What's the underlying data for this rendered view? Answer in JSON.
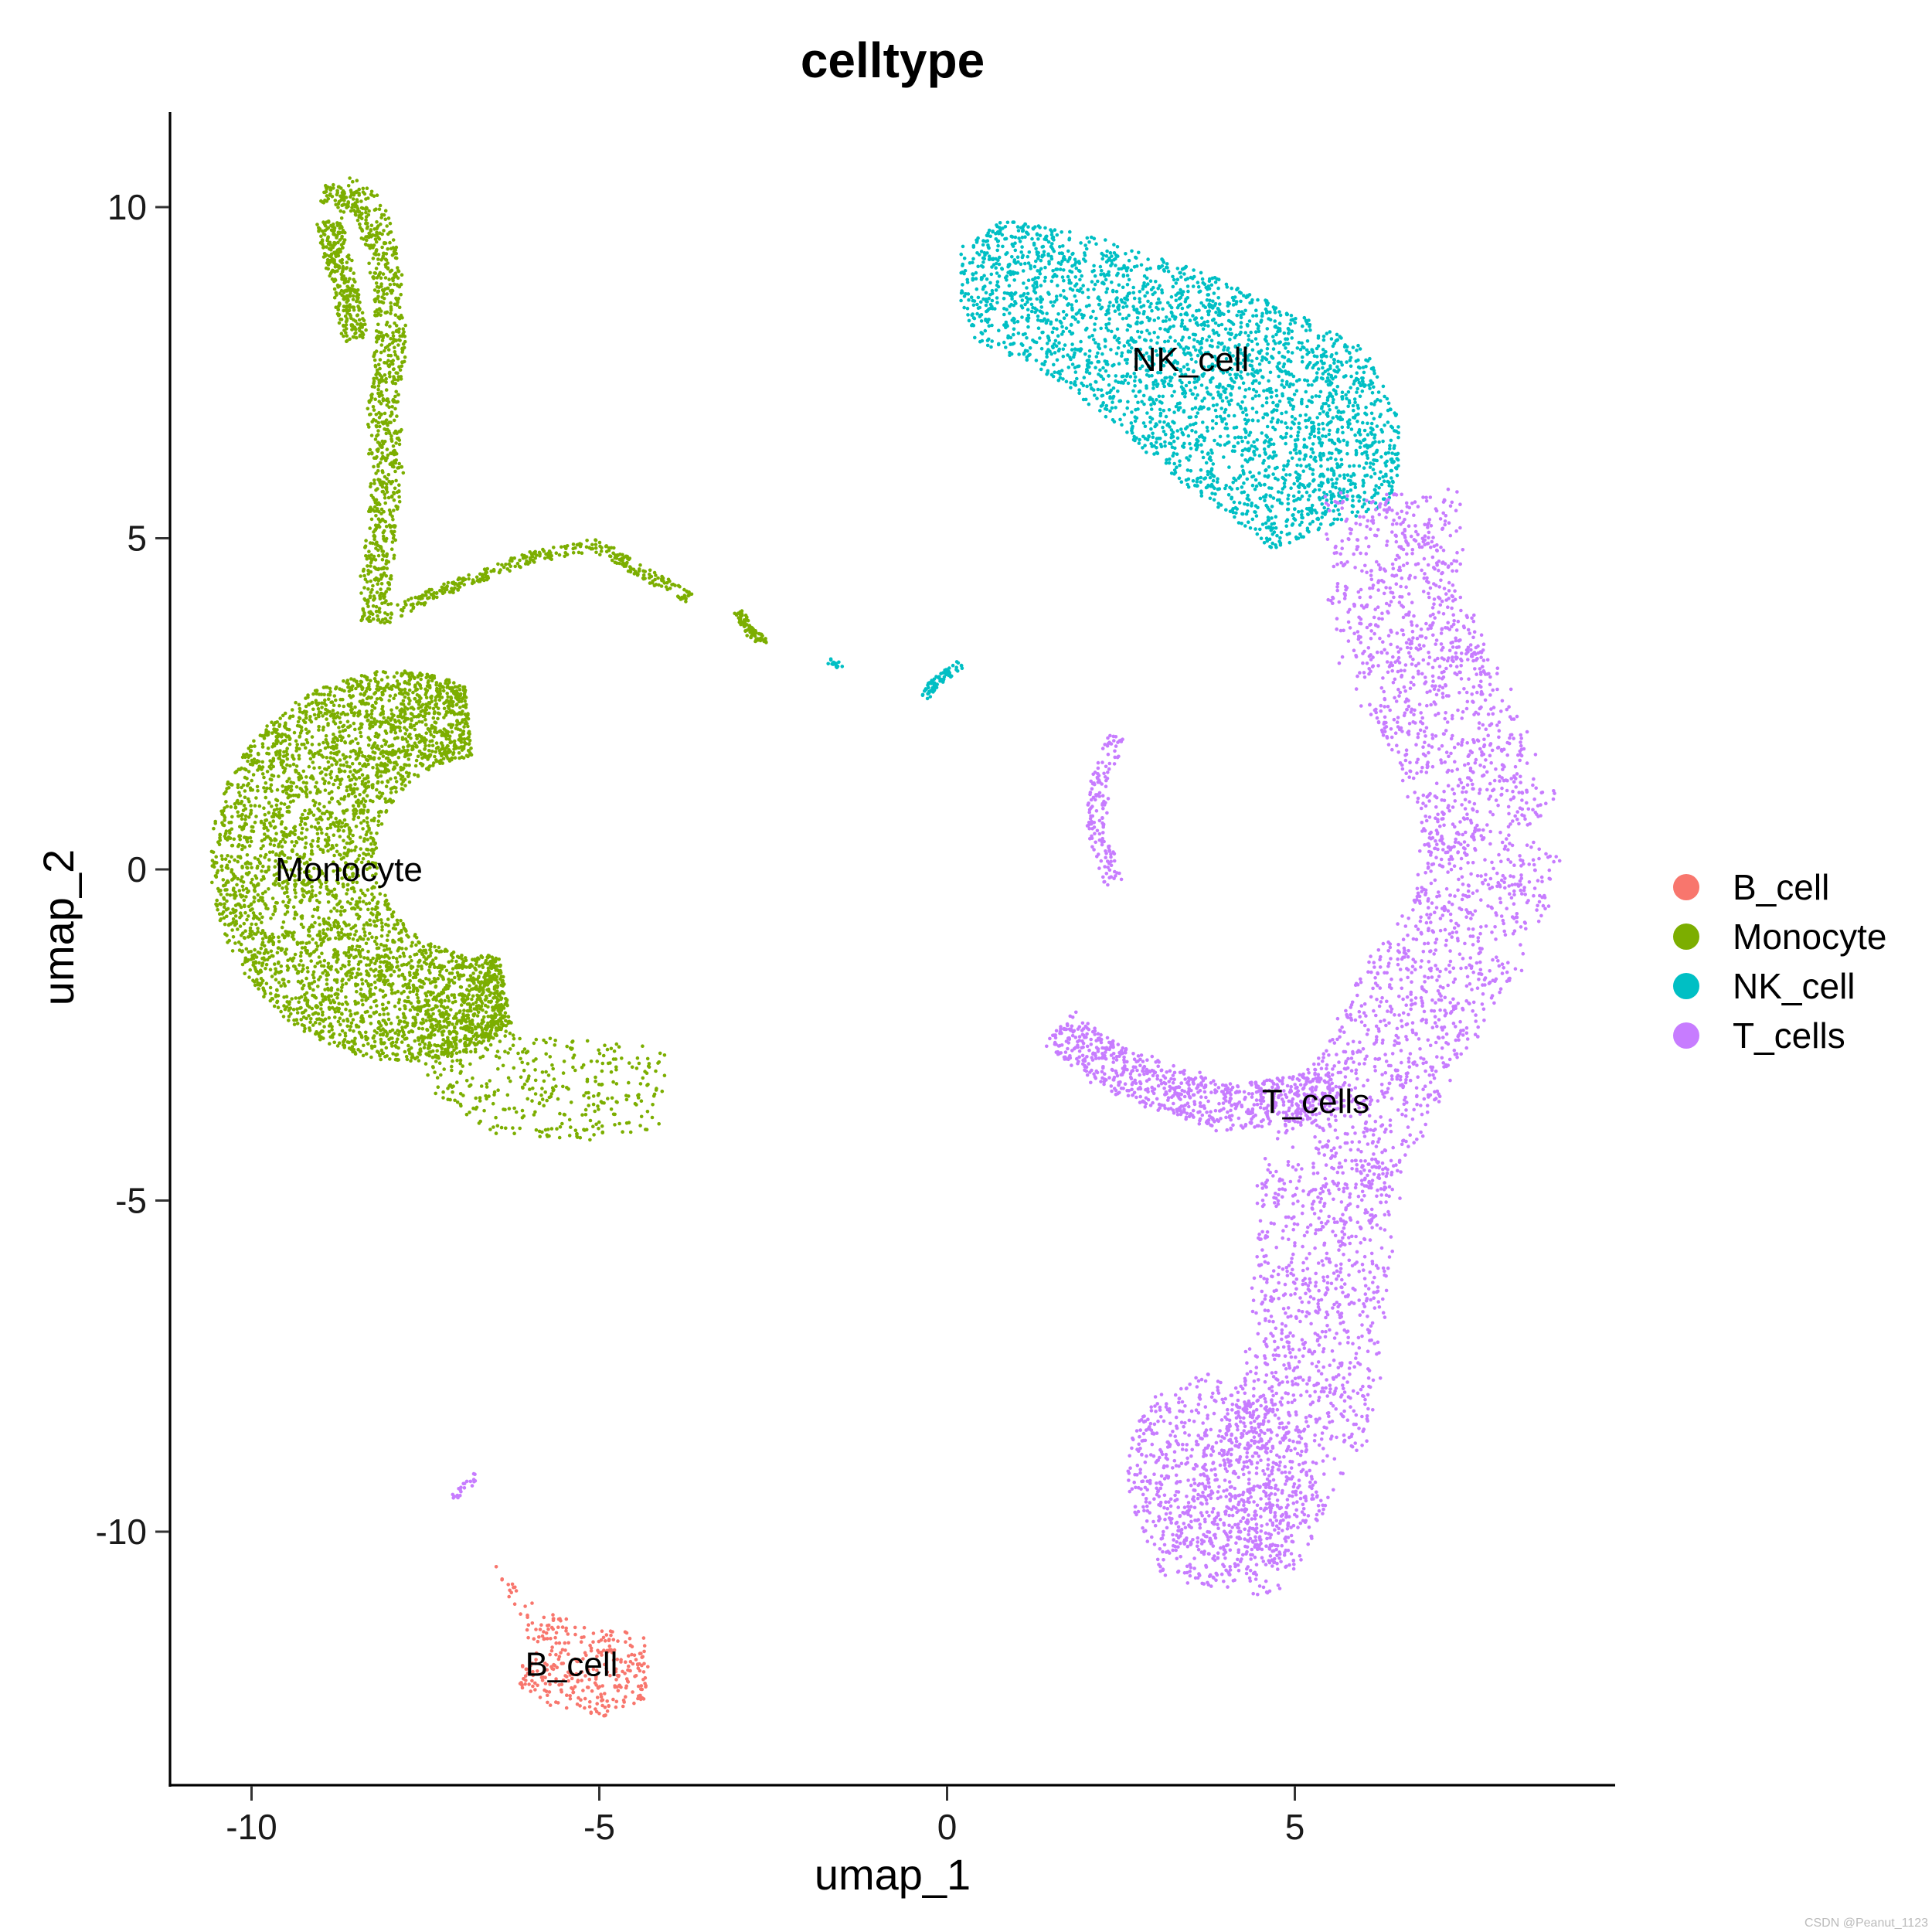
{
  "chart_data": {
    "type": "scatter",
    "title": "celltype",
    "xlabel": "umap_1",
    "ylabel": "umap_2",
    "xlim": [
      -11.2,
      9.5
    ],
    "ylim": [
      -13.5,
      11.5
    ],
    "xticks": [
      -10,
      -5,
      0,
      5
    ],
    "xtick_labels": [
      "-10",
      "-5",
      "0",
      "5"
    ],
    "yticks": [
      10,
      5,
      0,
      -5,
      -10
    ],
    "ytick_labels": [
      "10",
      "5",
      "0",
      "-5",
      "-10"
    ],
    "grid": false,
    "legend_position": "right",
    "series": [
      {
        "name": "B_cell",
        "color": "#F8766D",
        "label_position": [
          -5.4,
          -12.0
        ],
        "clusters": [
          {
            "shape": "polygon",
            "n": 340,
            "points": [
              [
                -6.5,
                -10.5
              ],
              [
                -5.8,
                -11.2
              ],
              [
                -4.3,
                -11.6
              ],
              [
                -4.3,
                -12.5
              ],
              [
                -4.9,
                -12.8
              ],
              [
                -5.6,
                -12.7
              ],
              [
                -6.2,
                -12.3
              ],
              [
                -6.0,
                -11.7
              ]
            ]
          }
        ]
      },
      {
        "name": "Monocyte",
        "color": "#7CAE00",
        "label_position": [
          -8.6,
          0.0
        ],
        "clusters": [
          {
            "shape": "crescent",
            "n": 4200,
            "cx": -6.7,
            "cy": 0.2,
            "r_inner": 1.5,
            "r_outer": 3.9,
            "angle_start": 95,
            "angle_end": 280,
            "scale_x": 1.0,
            "scale_y": 1.0
          },
          {
            "shape": "polygon",
            "n": 380,
            "points": [
              [
                -7.8,
                -1.8
              ],
              [
                -6.5,
                -2.4
              ],
              [
                -4.9,
                -2.6
              ],
              [
                -4.0,
                -2.7
              ],
              [
                -4.1,
                -3.9
              ],
              [
                -5.2,
                -4.1
              ],
              [
                -6.5,
                -4.0
              ],
              [
                -7.4,
                -3.4
              ]
            ]
          },
          {
            "shape": "path",
            "n": 900,
            "width": 0.22,
            "points": [
              [
                -8.85,
                10.0
              ],
              [
                -8.7,
                10.3
              ],
              [
                -8.3,
                10.0
              ],
              [
                -8.05,
                9.0
              ],
              [
                -8.0,
                8.0
              ],
              [
                -8.1,
                7.0
              ],
              [
                -8.05,
                6.0
              ],
              [
                -8.15,
                5.0
              ],
              [
                -8.2,
                4.3
              ],
              [
                -8.2,
                3.7
              ]
            ]
          },
          {
            "shape": "path",
            "n": 300,
            "width": 0.18,
            "points": [
              [
                -8.9,
                9.8
              ],
              [
                -8.7,
                9.0
              ],
              [
                -8.5,
                8.0
              ]
            ]
          },
          {
            "shape": "path",
            "n": 330,
            "width": 0.09,
            "points": [
              [
                -7.9,
                3.9
              ],
              [
                -7.5,
                4.1
              ],
              [
                -6.8,
                4.4
              ],
              [
                -6.0,
                4.7
              ],
              [
                -5.1,
                4.9
              ],
              [
                -4.8,
                4.75
              ],
              [
                -4.4,
                4.5
              ],
              [
                -3.7,
                4.1
              ]
            ]
          },
          {
            "shape": "path",
            "n": 90,
            "width": 0.07,
            "points": [
              [
                -3.0,
                3.9
              ],
              [
                -2.85,
                3.6
              ],
              [
                -2.6,
                3.4
              ]
            ]
          }
        ]
      },
      {
        "name": "NK_cell",
        "color": "#00BFC4",
        "label_position": [
          3.5,
          7.7
        ],
        "clusters": [
          {
            "shape": "polygon",
            "n": 2900,
            "points": [
              [
                0.2,
                9.4
              ],
              [
                0.8,
                9.8
              ],
              [
                2.0,
                9.6
              ],
              [
                3.5,
                9.1
              ],
              [
                5.0,
                8.4
              ],
              [
                6.0,
                7.9
              ],
              [
                6.5,
                6.8
              ],
              [
                6.5,
                5.6
              ],
              [
                5.9,
                5.3
              ],
              [
                5.3,
                5.1
              ],
              [
                4.7,
                4.8
              ],
              [
                4.2,
                5.2
              ],
              [
                3.3,
                5.9
              ],
              [
                2.3,
                6.8
              ],
              [
                1.4,
                7.5
              ],
              [
                0.4,
                8.0
              ],
              [
                0.2,
                8.5
              ]
            ]
          },
          {
            "shape": "path",
            "n": 80,
            "width": 0.07,
            "points": [
              [
                -0.3,
                2.6
              ],
              [
                -0.2,
                2.8
              ],
              [
                0.2,
                3.1
              ]
            ]
          },
          {
            "shape": "path",
            "n": 14,
            "width": 0.04,
            "points": [
              [
                -1.7,
                3.15
              ],
              [
                -1.5,
                3.05
              ]
            ]
          }
        ]
      },
      {
        "name": "T_cells",
        "color": "#C77CFF",
        "label_position": [
          5.3,
          -3.5
        ],
        "clusters": [
          {
            "shape": "path",
            "n": 3300,
            "width": 0.95,
            "points": [
              [
                6.4,
                5.7
              ],
              [
                6.4,
                4.5
              ],
              [
                6.8,
                3.0
              ],
              [
                7.4,
                1.8
              ],
              [
                7.9,
                0.5
              ],
              [
                7.6,
                -0.8
              ],
              [
                6.8,
                -2.0
              ],
              [
                6.2,
                -3.2
              ],
              [
                5.5,
                -4.4
              ],
              [
                5.4,
                -5.8
              ],
              [
                5.3,
                -7.3
              ],
              [
                5.0,
                -8.6
              ],
              [
                4.3,
                -9.9
              ],
              [
                3.9,
                -10.5
              ]
            ]
          },
          {
            "shape": "polygon",
            "n": 800,
            "points": [
              [
                2.9,
                -8.0
              ],
              [
                3.7,
                -7.6
              ],
              [
                5.1,
                -8.2
              ],
              [
                5.3,
                -9.4
              ],
              [
                4.9,
                -10.4
              ],
              [
                4.0,
                -10.9
              ],
              [
                3.1,
                -10.7
              ],
              [
                2.6,
                -9.5
              ],
              [
                2.6,
                -8.6
              ]
            ]
          },
          {
            "shape": "path",
            "n": 800,
            "width": 0.35,
            "points": [
              [
                1.6,
                -2.4
              ],
              [
                2.2,
                -2.9
              ],
              [
                3.1,
                -3.3
              ],
              [
                4.0,
                -3.6
              ],
              [
                4.8,
                -3.5
              ],
              [
                5.6,
                -3.3
              ]
            ]
          },
          {
            "shape": "path",
            "n": 150,
            "width": 0.14,
            "points": [
              [
                2.45,
                2.0
              ],
              [
                2.2,
                1.4
              ],
              [
                2.15,
                0.6
              ],
              [
                2.3,
                0.1
              ],
              [
                2.4,
                -0.2
              ]
            ]
          },
          {
            "shape": "path",
            "n": 22,
            "width": 0.07,
            "points": [
              [
                -7.1,
                -9.5
              ],
              [
                -6.9,
                -9.3
              ],
              [
                -6.7,
                -9.05
              ]
            ]
          }
        ]
      }
    ]
  },
  "watermark": "CSDN @Peanut_1123"
}
